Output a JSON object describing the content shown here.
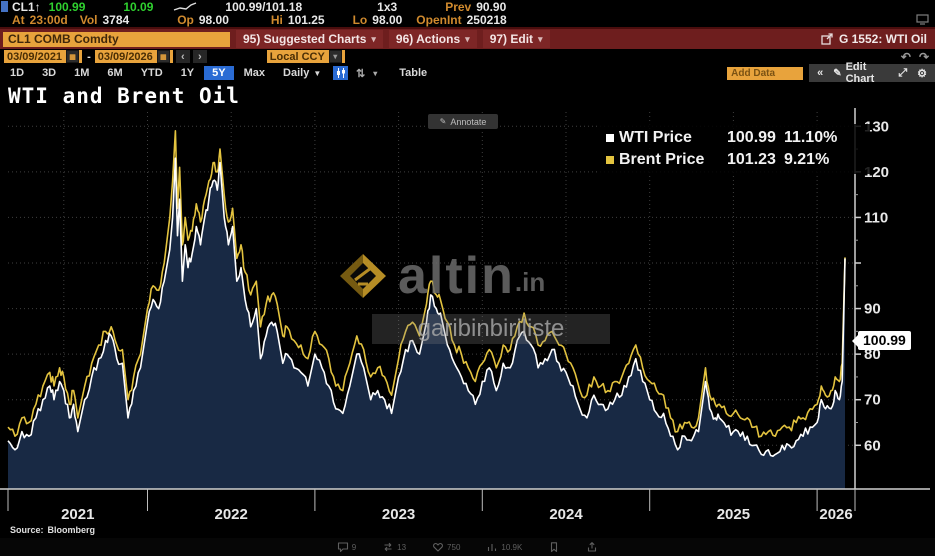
{
  "topbar": {
    "ticker": "CL1",
    "arrow": "↑",
    "last": "100.99",
    "change": "10.09",
    "bid_ask": "100.99/101.18",
    "size": "1x3",
    "prev_label": "Prev",
    "prev": "90.90",
    "at_label": "At",
    "at": "23:00d",
    "vol_label": "Vol",
    "vol": "3784",
    "op_label": "Op",
    "op": "98.00",
    "hi_label": "Hi",
    "hi": "101.25",
    "lo_label": "Lo",
    "lo": "98.00",
    "oi_label": "OpenInt",
    "oi": "250218"
  },
  "cmdbar": {
    "ticker_field": "CL1 COMB Comdty",
    "suggested": "95) Suggested Charts",
    "actions": "96) Actions",
    "edit": "97) Edit",
    "chart_ref": "G 1552: WTI Oil"
  },
  "datebar": {
    "from": "03/09/2021",
    "dash": "-",
    "to": "03/09/2026",
    "prev": "‹",
    "next": "›",
    "currency": "Local CCY",
    "undo": "↶",
    "redo": "↷"
  },
  "rangebar": {
    "ranges": [
      "1D",
      "3D",
      "1M",
      "6M",
      "YTD",
      "1Y",
      "5Y",
      "Max"
    ],
    "active": "5Y",
    "frequency": "Daily",
    "table": "Table",
    "add_data_placeholder": "Add Data",
    "collapse": "«",
    "edit_chart": "Edit Chart"
  },
  "chart": {
    "title": "WTI and Brent Oil",
    "annotate": "Annotate",
    "source_label": "Source:",
    "source": "Bloomberg",
    "price_bubble": "100.99",
    "legend": [
      {
        "name": "WTI Price",
        "value": "100.99",
        "pct": "11.10%",
        "color": "#ffffff"
      },
      {
        "name": "Brent Price",
        "value": "101.23",
        "pct": "9.21%",
        "color": "#e3c33f"
      }
    ]
  },
  "watermark": {
    "brand": "altin",
    "tld": ".in",
    "tagline": "garibinbiriliste"
  },
  "social": {
    "items": [
      {
        "icon": "reply-icon",
        "count": "9"
      },
      {
        "icon": "repost-icon",
        "count": "13"
      },
      {
        "icon": "like-icon",
        "count": "750"
      },
      {
        "icon": "views-icon",
        "count": "10.9K"
      },
      {
        "icon": "bookmark-icon",
        "count": ""
      },
      {
        "icon": "share-icon",
        "count": ""
      }
    ]
  },
  "chart_data": {
    "type": "line",
    "title": "WTI and Brent Oil",
    "x_start": "2021-03",
    "x_end": "2026-03",
    "x_unit": "months_since_2021_03",
    "ylim": [
      52,
      133
    ],
    "y_ticks": [
      60,
      70,
      80,
      90,
      100,
      110,
      120,
      130
    ],
    "x_year_labels": [
      "2021",
      "2022",
      "2023",
      "2024",
      "2025",
      "2026"
    ],
    "year_boundaries_months": [
      10,
      22,
      34,
      46,
      58
    ],
    "grid": "dotted",
    "legend_position": "top-right",
    "series": [
      {
        "name": "WTI Price",
        "color": "#ffffff",
        "last": 100.99,
        "pct_change": "11.10%"
      },
      {
        "name": "Brent Price",
        "color": "#e3c33f",
        "last": 101.23,
        "pct_change": "9.21%"
      }
    ],
    "area_fill": "#182944",
    "points": [
      [
        0,
        61,
        64
      ],
      [
        0.5,
        59,
        62
      ],
      [
        1,
        63,
        66
      ],
      [
        1.5,
        62,
        65
      ],
      [
        2,
        66,
        69
      ],
      [
        2.5,
        70,
        73
      ],
      [
        3,
        73,
        76
      ],
      [
        3.3,
        70,
        73
      ],
      [
        3.7,
        74,
        77
      ],
      [
        4,
        72,
        75
      ],
      [
        4.4,
        66,
        69
      ],
      [
        4.7,
        69,
        72
      ],
      [
        5,
        63,
        66
      ],
      [
        5.5,
        70,
        73
      ],
      [
        6,
        75,
        78
      ],
      [
        6.5,
        79,
        82
      ],
      [
        7,
        83,
        85
      ],
      [
        7.4,
        84,
        86
      ],
      [
        7.8,
        79,
        82
      ],
      [
        8.2,
        78,
        81
      ],
      [
        8.6,
        66,
        70
      ],
      [
        9,
        72,
        75
      ],
      [
        9.5,
        77,
        80
      ],
      [
        10,
        87,
        90
      ],
      [
        10.4,
        92,
        95
      ],
      [
        10.8,
        90,
        94
      ],
      [
        11.2,
        96,
        100
      ],
      [
        11.6,
        103,
        110
      ],
      [
        11.8,
        110,
        118
      ],
      [
        12,
        123,
        129
      ],
      [
        12.15,
        106,
        112
      ],
      [
        12.3,
        114,
        121
      ],
      [
        12.5,
        96,
        104
      ],
      [
        12.7,
        104,
        110
      ],
      [
        12.9,
        99,
        105
      ],
      [
        13.2,
        102,
        107
      ],
      [
        13.5,
        108,
        113
      ],
      [
        13.8,
        104,
        109
      ],
      [
        14.1,
        110,
        114
      ],
      [
        14.4,
        114,
        118
      ],
      [
        14.7,
        118,
        122
      ],
      [
        15,
        116,
        120
      ],
      [
        15.2,
        122,
        125
      ],
      [
        15.5,
        110,
        115
      ],
      [
        15.8,
        104,
        109
      ],
      [
        16.1,
        108,
        112
      ],
      [
        16.4,
        96,
        101
      ],
      [
        16.7,
        99,
        104
      ],
      [
        17,
        92,
        98
      ],
      [
        17.4,
        86,
        93
      ],
      [
        17.8,
        90,
        96
      ],
      [
        18.1,
        79,
        86
      ],
      [
        18.5,
        84,
        91
      ],
      [
        18.9,
        87,
        93
      ],
      [
        19.3,
        85,
        91
      ],
      [
        19.7,
        78,
        84
      ],
      [
        20,
        80,
        86
      ],
      [
        20.5,
        77,
        83
      ],
      [
        21,
        76,
        82
      ],
      [
        21.5,
        73,
        79
      ],
      [
        22,
        80,
        85
      ],
      [
        22.5,
        77,
        82
      ],
      [
        23,
        73,
        79
      ],
      [
        23.5,
        68,
        73
      ],
      [
        24,
        67,
        72
      ],
      [
        24.5,
        73,
        78
      ],
      [
        25,
        80,
        84
      ],
      [
        25.5,
        77,
        81
      ],
      [
        26,
        70,
        75
      ],
      [
        26.5,
        72,
        77
      ],
      [
        27,
        70,
        75
      ],
      [
        27.5,
        67,
        71
      ],
      [
        28,
        75,
        79
      ],
      [
        28.5,
        81,
        85
      ],
      [
        29,
        83,
        87
      ],
      [
        29.5,
        80,
        84
      ],
      [
        30,
        87,
        91
      ],
      [
        30.3,
        93,
        96
      ],
      [
        30.7,
        90,
        93
      ],
      [
        31,
        89,
        92
      ],
      [
        31.5,
        82,
        87
      ],
      [
        32,
        78,
        82
      ],
      [
        32.5,
        75,
        80
      ],
      [
        33,
        72,
        77
      ],
      [
        33.5,
        69,
        74
      ],
      [
        34,
        74,
        78
      ],
      [
        34.5,
        77,
        81
      ],
      [
        35,
        72,
        77
      ],
      [
        35.5,
        78,
        82
      ],
      [
        36,
        77,
        81
      ],
      [
        36.5,
        83,
        86
      ],
      [
        37,
        85,
        89
      ],
      [
        37.5,
        82,
        86
      ],
      [
        38,
        77,
        82
      ],
      [
        38.5,
        79,
        83
      ],
      [
        39,
        81,
        85
      ],
      [
        39.5,
        78,
        82
      ],
      [
        40,
        76,
        80
      ],
      [
        40.5,
        73,
        77
      ],
      [
        41,
        68,
        72
      ],
      [
        41.5,
        66,
        71
      ],
      [
        42,
        71,
        75
      ],
      [
        42.5,
        69,
        73
      ],
      [
        43,
        68,
        72
      ],
      [
        43.5,
        70,
        74
      ],
      [
        44,
        71,
        75
      ],
      [
        44.5,
        75,
        78
      ],
      [
        45,
        79,
        82
      ],
      [
        45.5,
        74,
        77
      ],
      [
        46,
        70,
        74
      ],
      [
        46.5,
        67,
        72
      ],
      [
        47,
        67,
        71
      ],
      [
        47.5,
        62,
        66
      ],
      [
        48,
        59,
        63
      ],
      [
        48.5,
        62,
        65
      ],
      [
        49,
        61,
        64
      ],
      [
        49.5,
        63,
        66
      ],
      [
        50,
        74,
        77
      ],
      [
        50.3,
        68,
        71
      ],
      [
        50.7,
        66,
        69
      ],
      [
        51,
        66,
        69
      ],
      [
        51.5,
        64,
        67
      ],
      [
        52,
        63,
        67
      ],
      [
        52.5,
        62,
        66
      ],
      [
        53,
        62,
        66
      ],
      [
        53.5,
        60,
        64
      ],
      [
        54,
        58,
        62
      ],
      [
        54.5,
        59,
        63
      ],
      [
        55,
        58,
        62
      ],
      [
        55.5,
        60,
        64
      ],
      [
        56,
        60,
        64
      ],
      [
        56.5,
        61,
        65
      ],
      [
        57,
        62,
        66
      ],
      [
        57.5,
        64,
        68
      ],
      [
        58,
        65,
        69
      ],
      [
        58.3,
        70,
        73
      ],
      [
        58.6,
        68,
        71
      ],
      [
        59,
        68,
        72
      ],
      [
        59.3,
        72,
        75
      ],
      [
        59.6,
        70,
        74
      ],
      [
        59.8,
        74,
        78
      ],
      [
        60,
        100.99,
        101.23
      ]
    ]
  }
}
